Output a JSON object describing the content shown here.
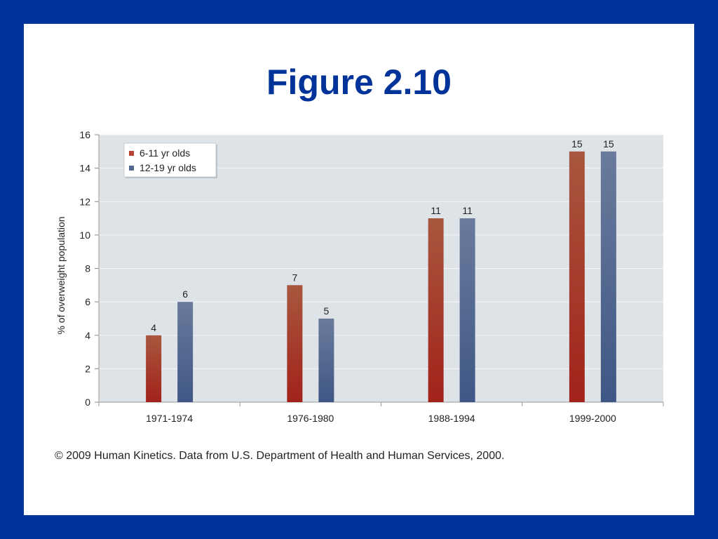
{
  "slide": {
    "title": "Figure 2.10",
    "caption": "© 2009 Human Kinetics. Data from U.S. Department of Health and Human Services, 2000.",
    "frame_color": "#003399"
  },
  "chart_data": {
    "type": "bar",
    "categories": [
      "1971-1974",
      "1976-1980",
      "1988-1994",
      "1999-2000"
    ],
    "series": [
      {
        "name": "6-11 yr olds",
        "values": [
          4,
          7,
          11,
          15
        ],
        "color": "#b8412f"
      },
      {
        "name": "12-19 yr olds",
        "values": [
          6,
          5,
          11,
          15
        ],
        "color": "#54698f"
      }
    ],
    "ylabel": "% of overweight population",
    "xlabel": "",
    "ylim": [
      0,
      16
    ],
    "yticks": [
      0,
      2,
      4,
      6,
      8,
      10,
      12,
      14,
      16
    ],
    "grid": true,
    "legend_position": "top-left",
    "data_labels": true,
    "plot_background": "#dde3e6"
  }
}
